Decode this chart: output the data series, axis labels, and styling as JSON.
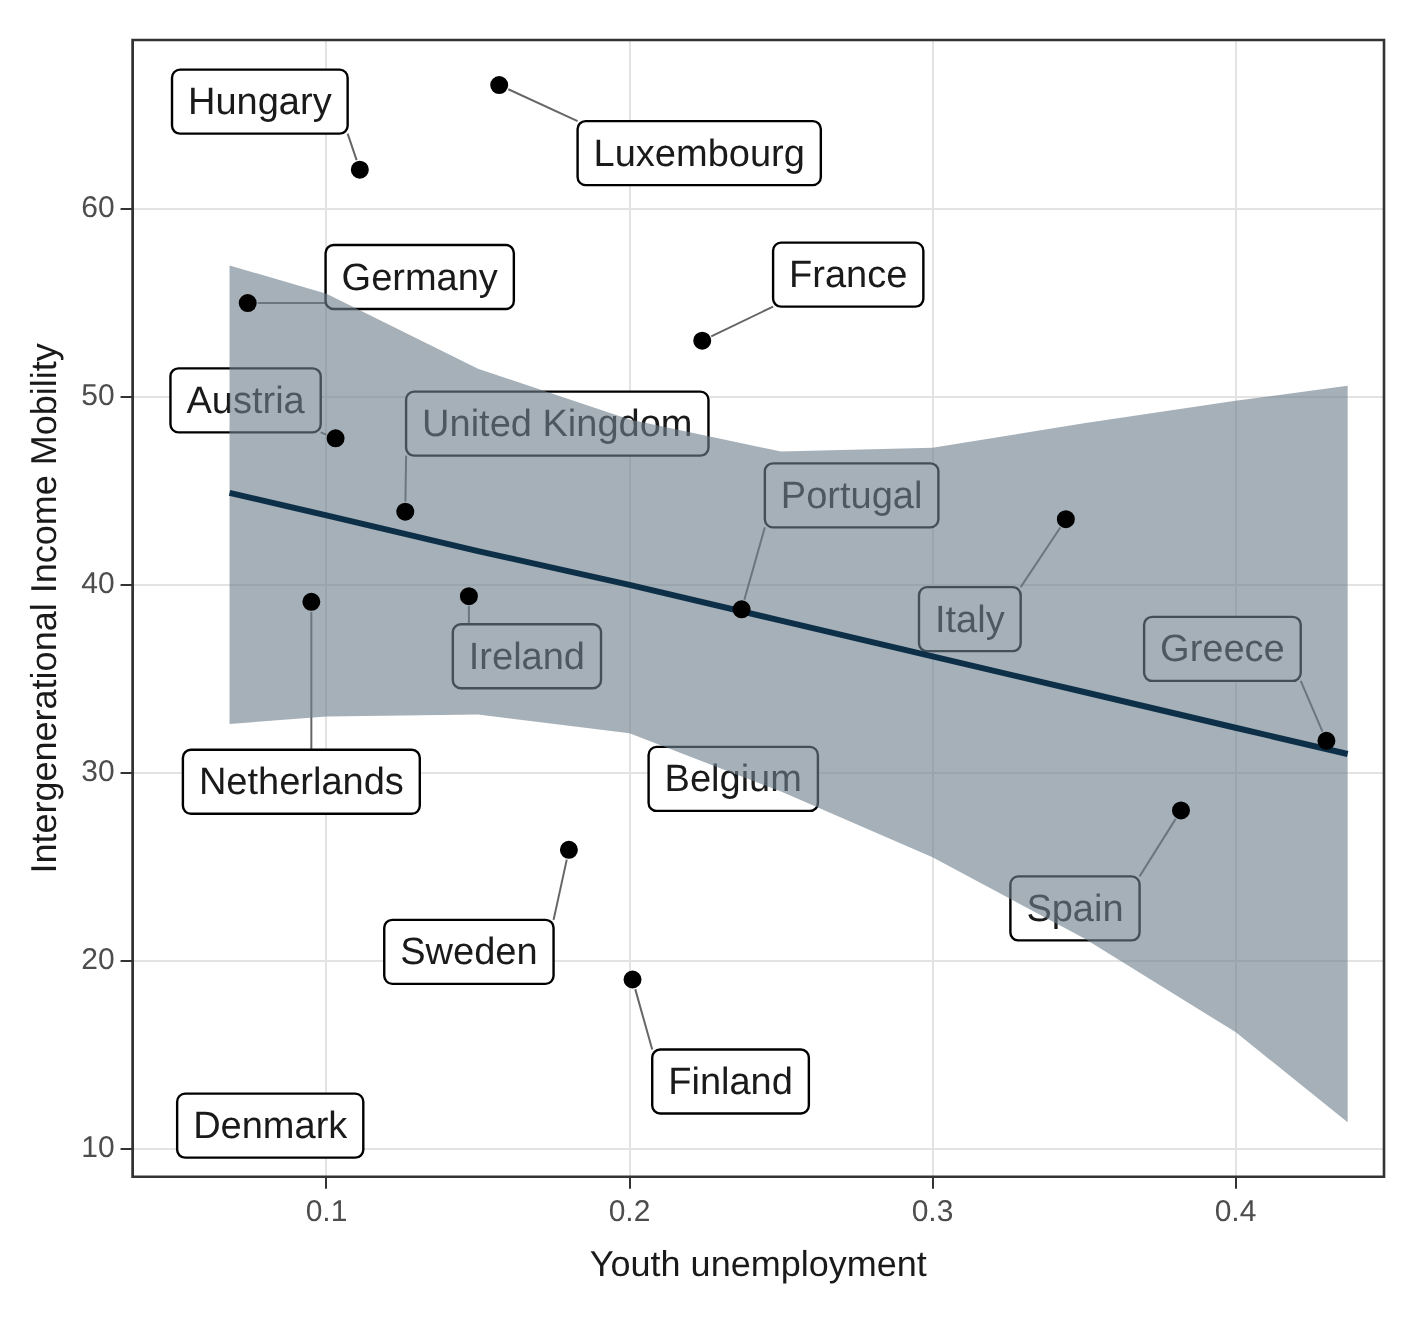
{
  "chart_data": {
    "type": "scatter",
    "xlabel": "Youth unemployment",
    "ylabel": "Intergenerational Income Mobility",
    "xlim": [
      0.036,
      0.449
    ],
    "xticks": [
      0.1,
      0.2,
      0.3,
      0.4
    ],
    "ylim": [
      8.5,
      69
    ],
    "yticks": [
      10,
      20,
      30,
      40,
      50,
      60
    ],
    "grid": true,
    "series": [
      {
        "type": "scatter",
        "marker": "circle",
        "color": "#000000",
        "x": [
          0.111,
          0.157,
          0.074,
          0.224,
          0.103,
          0.126,
          0.237,
          0.344,
          0.095,
          0.147,
          0.43,
          0.382,
          0.18,
          0.201
        ],
        "values": [
          62.1,
          66.6,
          55.0,
          53.0,
          47.8,
          43.9,
          38.7,
          43.5,
          39.1,
          39.4,
          31.7,
          28.0,
          25.9,
          19.0
        ]
      },
      {
        "type": "line",
        "marker": "none",
        "color": "#0d3048",
        "x": [
          0.068,
          0.1,
          0.15,
          0.2,
          0.25,
          0.3,
          0.35,
          0.4,
          0.437
        ],
        "values": [
          44.9,
          43.7,
          41.8,
          40.0,
          38.1,
          36.2,
          34.3,
          32.4,
          31.0
        ],
        "lower": [
          32.6,
          33.0,
          33.1,
          32.1,
          29.0,
          25.5,
          21.2,
          16.2,
          11.4
        ],
        "upper": [
          57.0,
          55.5,
          51.5,
          48.8,
          47.1,
          47.3,
          48.6,
          49.8,
          50.6
        ]
      }
    ],
    "annotations": [
      {
        "text": "Hungary",
        "x": 0.111,
        "y": 62.1
      },
      {
        "text": "Luxembourg",
        "x": 0.157,
        "y": 66.6
      },
      {
        "text": "Germany",
        "x": 0.074,
        "y": 55.0
      },
      {
        "text": "France",
        "x": 0.224,
        "y": 53.0
      },
      {
        "text": "Austria",
        "x": 0.103,
        "y": 47.8
      },
      {
        "text": "United Kingdom",
        "x": 0.126,
        "y": 43.9
      },
      {
        "text": "Portugal",
        "x": 0.237,
        "y": 38.7
      },
      {
        "text": "Italy",
        "x": 0.344,
        "y": 43.5
      },
      {
        "text": "Netherlands",
        "x": 0.095,
        "y": 39.1
      },
      {
        "text": "Ireland",
        "x": 0.147,
        "y": 39.4
      },
      {
        "text": "Greece",
        "x": 0.43,
        "y": 31.7
      },
      {
        "text": "Spain",
        "x": 0.382,
        "y": 28.0
      },
      {
        "text": "Sweden",
        "x": 0.18,
        "y": 25.9
      },
      {
        "text": "Finland",
        "x": 0.201,
        "y": 19.0
      },
      "Belgium",
      "Denmark"
    ]
  }
}
